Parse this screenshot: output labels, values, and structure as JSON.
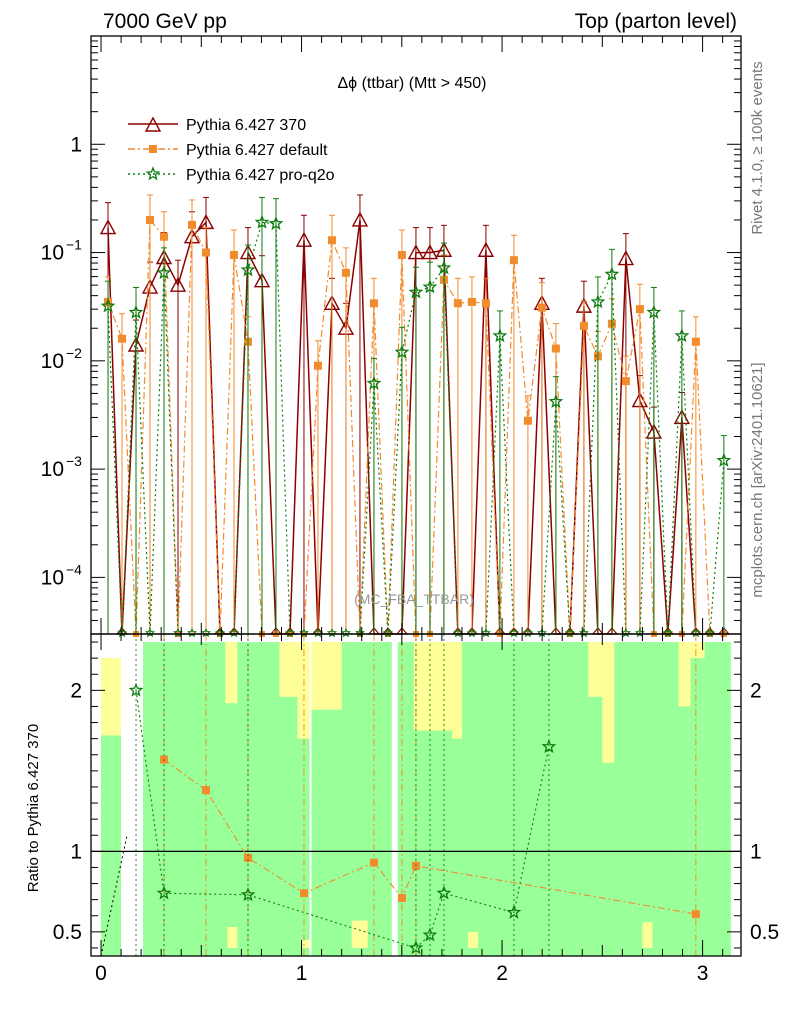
{
  "header": {
    "left": "7000 GeV pp",
    "right": "Top (parton level)"
  },
  "side_labels": {
    "rivet": "Rivet 4.1.0, ≥ 100k events",
    "mcplots": "mcplots.cern.ch [arXiv:2401.10621]"
  },
  "colors": {
    "ref": "#8b0000",
    "default": "#f28b2c",
    "pq2o": "#0e7d0e",
    "band_yellow": "#ffff99",
    "band_green": "#99ff99"
  },
  "chart_data": {
    "type": "line",
    "title": "Δϕ (ttbar) (Mtt > 450)",
    "watermark": "(MC_FBA_TTBAR)",
    "xlabel": "",
    "ratio_ylabel": "Ratio to Pythia 6.427 370",
    "xlim": [
      -0.05,
      3.1916
    ],
    "xticks": [
      {
        "value": 0,
        "label": "0"
      },
      {
        "value": 1,
        "label": "1"
      },
      {
        "value": 2,
        "label": "2"
      },
      {
        "value": 3,
        "label": "3"
      }
    ],
    "main_scale": "log",
    "main_ylim": [
      3e-05,
      10
    ],
    "main_yticks": [
      {
        "value": 0.0001,
        "base": "10",
        "exp": "−4"
      },
      {
        "value": 0.001,
        "base": "10",
        "exp": "−3"
      },
      {
        "value": 0.01,
        "base": "10",
        "exp": "−2"
      },
      {
        "value": 0.1,
        "base": "10",
        "exp": "−1"
      },
      {
        "value": 1,
        "base": "1",
        "exp": ""
      }
    ],
    "ratio_ylim": [
      0.35,
      2.35
    ],
    "ratio_yticks": [
      {
        "value": 0.5,
        "label": "0.5"
      },
      {
        "value": 1,
        "label": "1"
      },
      {
        "value": 2,
        "label": "2"
      }
    ],
    "bin_width": 0.0698,
    "x": [
      0.0349,
      0.1047,
      0.1745,
      0.2443,
      0.3141,
      0.3839,
      0.4537,
      0.5235,
      0.5933,
      0.6631,
      0.7329,
      0.8027,
      0.8725,
      0.9423,
      1.0121,
      1.0819,
      1.1517,
      1.2215,
      1.2913,
      1.3611,
      1.4309,
      1.5007,
      1.5705,
      1.6403,
      1.7101,
      1.7799,
      1.8497,
      1.9195,
      1.9893,
      2.0591,
      2.1289,
      2.1987,
      2.2685,
      2.3383,
      2.4081,
      2.4779,
      2.5477,
      2.6175,
      2.6873,
      2.7571,
      2.8269,
      2.8967,
      2.9665,
      3.0363,
      3.1061
    ],
    "series": [
      {
        "name": "Pythia 6.427 370",
        "color": "#8b0000",
        "marker": "triangle",
        "dash": "",
        "values": [
          0.17,
          0,
          0.014,
          0.048,
          0.09,
          0.05,
          0.14,
          0.19,
          0,
          0,
          0.1,
          0.055,
          0,
          0,
          0.13,
          0,
          0.034,
          0.02,
          0.2,
          0,
          0,
          0,
          0.1,
          0.1,
          0.105,
          0,
          0,
          0.105,
          0,
          0,
          0,
          0.034,
          0,
          0,
          0.032,
          0,
          0,
          0.088,
          0.0043,
          0.0022,
          0,
          0.003,
          0,
          0,
          0
        ]
      },
      {
        "name": "Pythia 6.427 default",
        "color": "#f28b2c",
        "marker": "square",
        "dash": "7,3,2,3",
        "values": [
          0.035,
          0.016,
          0,
          0.2,
          0.14,
          0,
          0.18,
          0.1,
          0,
          0.095,
          0.015,
          0,
          0,
          0,
          0,
          0.009,
          0.13,
          0.065,
          0,
          0.034,
          0,
          0.095,
          0,
          0,
          0.056,
          0.034,
          0.035,
          0.034,
          0,
          0.085,
          0.0028,
          0.031,
          0.013,
          0,
          0.021,
          0.011,
          0.022,
          0.0065,
          0.03,
          0,
          0,
          0,
          0.015,
          0,
          0
        ]
      },
      {
        "name": "Pythia 6.427 pro-q2o",
        "color": "#0e7d0e",
        "marker": "star",
        "dash": "2,3",
        "values": [
          0.032,
          0,
          0.028,
          0,
          0.065,
          0,
          0,
          0,
          0,
          0,
          0.069,
          0.19,
          0.185,
          0,
          0,
          0,
          0,
          0,
          0,
          0.0062,
          0,
          0.012,
          0.043,
          0.048,
          0.072,
          0,
          0,
          0,
          0.017,
          0,
          0,
          0,
          0.0042,
          0,
          0,
          0.035,
          0.063,
          0,
          0,
          0.028,
          0,
          0.017,
          0,
          0,
          0.0012
        ]
      }
    ],
    "ratio_series": [
      {
        "name": "Pythia 6.427 default",
        "points": [
          [
            0.3141,
            1.57
          ],
          [
            0.5235,
            1.38
          ],
          [
            0.7329,
            0.96
          ],
          [
            1.0121,
            0.74
          ],
          [
            1.3611,
            0.93
          ],
          [
            1.5007,
            0.71
          ],
          [
            1.5705,
            0.91
          ],
          [
            2.9665,
            0.61
          ]
        ]
      },
      {
        "name": "Pythia 6.427 pro-q2o",
        "points": [
          [
            0.1745,
            2.0
          ],
          [
            0.3141,
            0.74
          ],
          [
            0.7329,
            0.73
          ],
          [
            1.5705,
            0.4
          ],
          [
            1.6403,
            0.48
          ],
          [
            1.7101,
            0.74
          ],
          [
            2.0591,
            0.62
          ],
          [
            2.2336,
            1.65
          ]
        ]
      }
    ],
    "ratio_band_upper": [
      2.2,
      1.72,
      0,
      2.3,
      2.3,
      2.3,
      2.3,
      2.3,
      2.3,
      2.3,
      2.3,
      2.3,
      2.3,
      2.3,
      2.3,
      2.3,
      2.3,
      2.3,
      2.3,
      2.3,
      2.3,
      2.3,
      2.3,
      2.3,
      2.3,
      2.3,
      2.3,
      2.3,
      2.3,
      2.3,
      2.3,
      2.3,
      2.3,
      2.3,
      2.3,
      2.3,
      2.3,
      2.3,
      2.3,
      2.3,
      2.3,
      2.3,
      2.3,
      2.3,
      2.3
    ],
    "ratio_yellow_regions": [
      [
        0.0,
        0.1,
        1.72,
        2.2
      ],
      [
        0.62,
        0.68,
        1.92,
        2.3
      ],
      [
        0.89,
        0.98,
        1.96,
        2.3
      ],
      [
        0.98,
        1.04,
        1.7,
        2.3
      ],
      [
        1.04,
        1.2,
        1.88,
        2.3
      ],
      [
        1.56,
        1.75,
        1.75,
        2.3
      ],
      [
        1.75,
        1.8,
        1.7,
        2.3
      ],
      [
        2.43,
        2.5,
        1.96,
        2.3
      ],
      [
        2.5,
        2.56,
        1.55,
        2.3
      ],
      [
        2.88,
        2.94,
        1.9,
        2.3
      ],
      [
        2.94,
        3.01,
        2.2,
        2.3
      ],
      [
        2.7,
        2.75,
        0.4,
        0.56
      ],
      [
        0.63,
        0.68,
        0.4,
        0.53
      ],
      [
        1.0,
        1.05,
        0.4,
        0.45
      ],
      [
        1.25,
        1.33,
        0.4,
        0.57
      ],
      [
        1.83,
        1.88,
        0.4,
        0.5
      ]
    ],
    "ratio_gaps": [
      [
        0.1,
        0.16
      ],
      [
        1.45,
        1.48
      ],
      [
        1.04,
        1.05
      ]
    ]
  }
}
